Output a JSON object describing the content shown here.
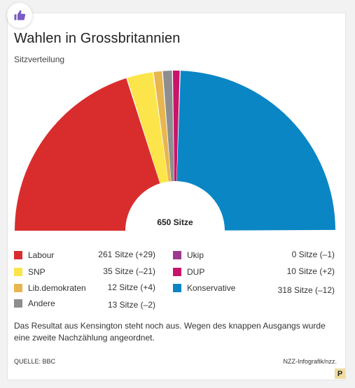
{
  "header": {
    "title": "Wahlen in Grossbritannien",
    "subtitle": "Sitzverteilung",
    "badge_icon": "thumbs-up-icon"
  },
  "chart_data": {
    "type": "pie",
    "variant": "half-donut",
    "center_label": "650 Sitze",
    "total": 650,
    "series": [
      {
        "name": "Labour",
        "value": 261,
        "change": "+29",
        "label": "261 Sitze (+29)",
        "color": "#d92d2d"
      },
      {
        "name": "SNP",
        "value": 35,
        "change": "–21",
        "label": "35 Sitze (–21)",
        "color": "#fbe54a"
      },
      {
        "name": "Lib.demokraten",
        "value": 12,
        "change": "+4",
        "label": "12 Sitze (+4)",
        "color": "#e8b650"
      },
      {
        "name": "Andere",
        "value": 13,
        "change": "–2",
        "label": "13 Sitze (–2)",
        "color": "#8e8e8e"
      },
      {
        "name": "Ukip",
        "value": 0,
        "change": "–1",
        "label": "0 Sitze (–1)",
        "color": "#9b3a8e"
      },
      {
        "name": "DUP",
        "value": 10,
        "change": "+2",
        "label": "10 Sitze (+2)",
        "color": "#c8156a"
      },
      {
        "name": "Konservative",
        "value": 318,
        "change": "–12",
        "label": "318 Sitze (–12)",
        "color": "#0a86c4"
      }
    ]
  },
  "note": "Das Resultat aus Kensington steht noch aus. Wegen des knappen Ausgangs wurde eine zweite Nachzählung angeordnet.",
  "footer": {
    "source": "QUELLE: BBC",
    "credit": "NZZ-Infografik/nzz.",
    "badge": "P"
  }
}
